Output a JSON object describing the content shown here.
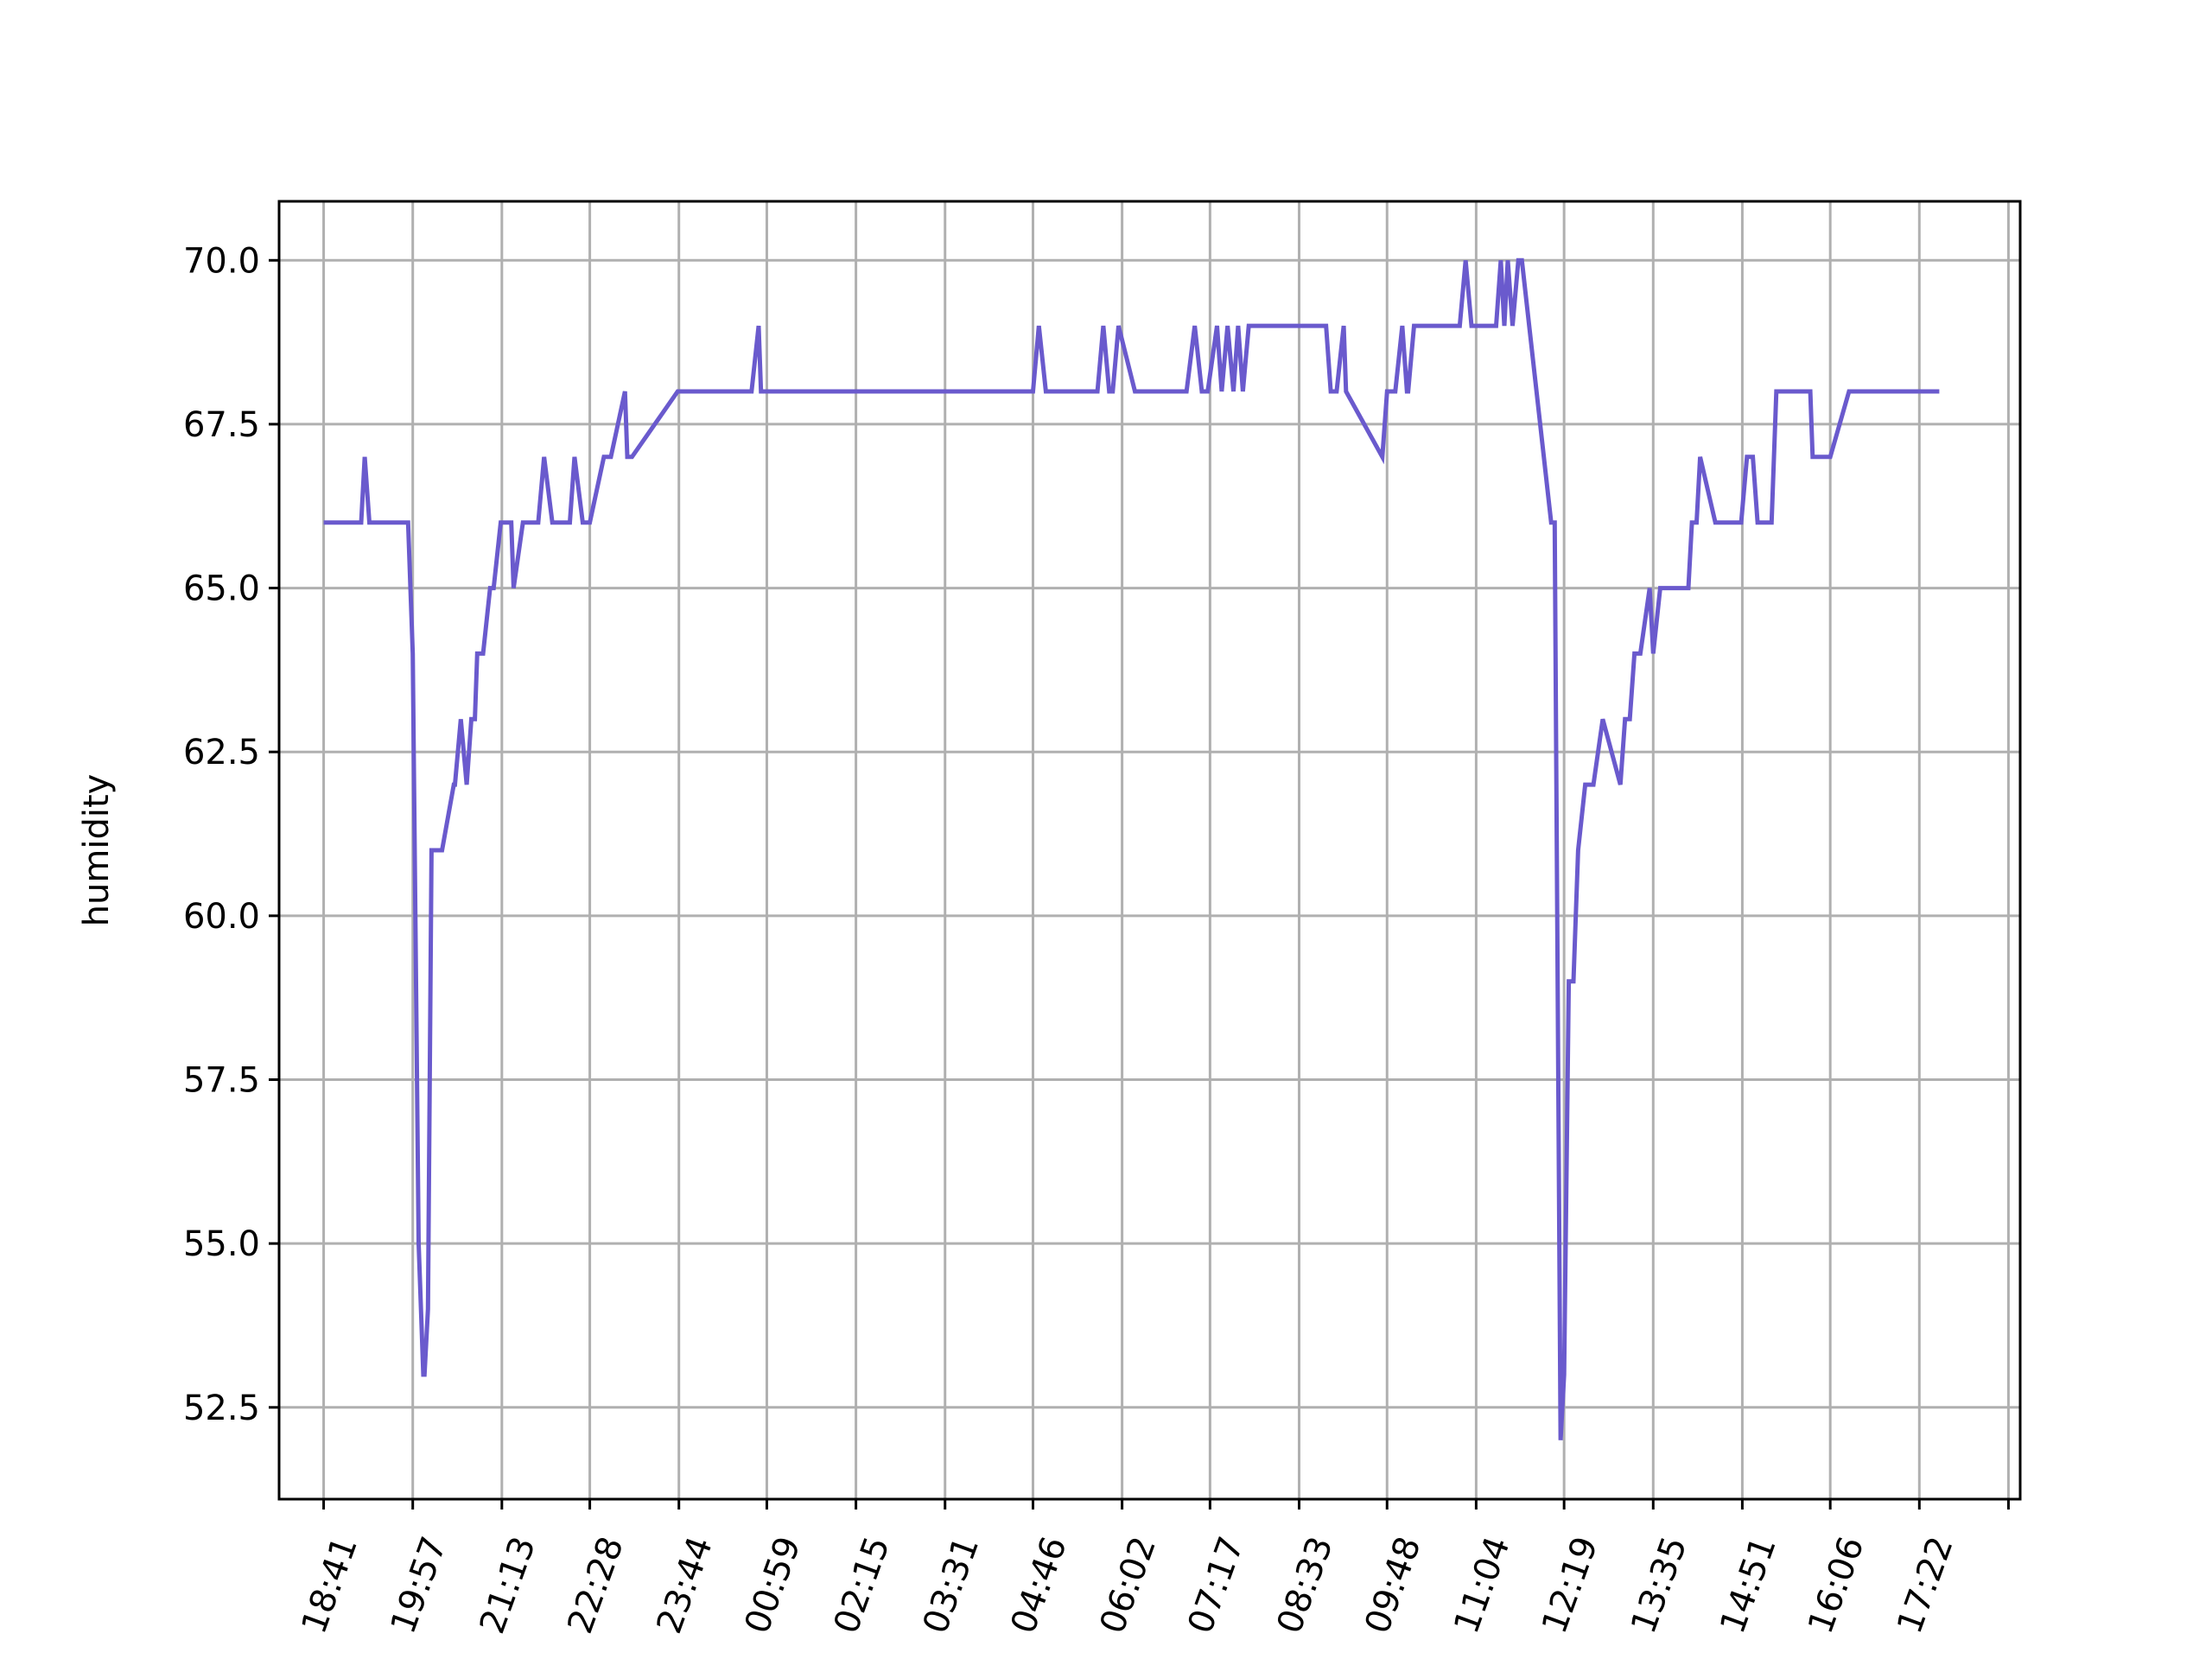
{
  "chart_data": {
    "type": "line",
    "title": "",
    "xlabel": "",
    "ylabel": "humidity",
    "grid": true,
    "ylim": [
      51.1,
      70.9
    ],
    "yticks": [
      52.5,
      55.0,
      57.5,
      60.0,
      62.5,
      65.0,
      67.5,
      70.0
    ],
    "yticks_text": [
      "52.5",
      "55.0",
      "57.5",
      "60.0",
      "62.5",
      "65.0",
      "67.5",
      "70.0"
    ],
    "xlim": [
      "18:03",
      "18:48"
    ],
    "xticks": [
      "18:41",
      "19:57",
      "21:13",
      "22:28",
      "23:44",
      "00:59",
      "02:15",
      "03:31",
      "04:46",
      "06:02",
      "07:17",
      "08:33",
      "09:48",
      "11:04",
      "12:19",
      "13:35",
      "14:51",
      "16:06",
      "17:22",
      ""
    ],
    "colors": {
      "line": "#6a5acd",
      "grid": "#b0b0b0"
    },
    "series": [
      {
        "x": [
          "18:41",
          "19:13",
          "19:16",
          "19:20",
          "19:23",
          "19:53",
          "19:57",
          "20:02",
          "20:06",
          "20:07",
          "20:10",
          "20:13",
          "20:22",
          "20:32",
          "20:33",
          "20:38",
          "20:43",
          "20:47",
          "20:50",
          "20:52",
          "20:57",
          "21:03",
          "21:06",
          "21:12",
          "21:21",
          "21:23",
          "21:31",
          "21:35",
          "21:44",
          "21:49",
          "21:56",
          "22:01",
          "22:03",
          "22:09",
          "22:11",
          "22:15",
          "22:22",
          "22:28",
          "22:40",
          "22:43",
          "22:46",
          "22:58",
          "23:00",
          "23:04",
          "23:43",
          "23:48",
          "23:51",
          "23:56",
          "23:59",
          "00:03",
          "00:31",
          "00:36",
          "00:46",
          "00:52",
          "00:54",
          "01:01",
          "04:46",
          "04:51",
          "04:57",
          "05:41",
          "05:46",
          "05:51",
          "05:54",
          "05:59",
          "06:13",
          "06:57",
          "07:04",
          "07:10",
          "07:15",
          "07:23",
          "07:27",
          "07:32",
          "07:37",
          "07:41",
          "07:45",
          "07:50",
          "08:53",
          "08:56",
          "09:00",
          "09:05",
          "09:11",
          "09:13",
          "09:44",
          "09:48",
          "09:51",
          "09:55",
          "10:01",
          "10:05",
          "10:06",
          "10:11",
          "10:50",
          "10:55",
          "11:00",
          "11:21",
          "11:25",
          "11:28",
          "11:31",
          "11:35",
          "11:40",
          "11:43",
          "12:08",
          "12:11",
          "12:16",
          "12:19",
          "12:23",
          "12:27",
          "12:31",
          "12:37",
          "12:44",
          "12:52",
          "13:07",
          "13:11",
          "13:15",
          "13:19",
          "13:24",
          "13:32",
          "13:35",
          "13:41",
          "14:05",
          "14:08",
          "14:12",
          "14:15",
          "14:28",
          "14:50",
          "14:55",
          "15:00",
          "15:04",
          "15:14",
          "15:16",
          "15:20",
          "15:49",
          "15:51",
          "16:06",
          "16:22",
          "16:39",
          "17:03",
          "17:06",
          "17:16",
          "17:18",
          "17:33",
          "17:38",
          "17:39"
        ],
        "y": [
          66,
          66,
          67,
          66,
          66,
          66,
          64,
          55,
          53,
          53,
          54,
          61,
          61,
          62,
          62,
          63,
          62,
          63,
          63,
          64,
          64,
          65,
          65,
          66,
          66,
          65,
          66,
          66,
          66,
          67,
          66,
          66,
          66,
          66,
          66,
          67,
          66,
          66,
          67,
          67,
          67,
          68,
          67,
          67,
          68,
          68,
          68,
          68,
          68,
          68,
          68,
          68,
          68,
          69,
          68,
          68,
          68,
          69,
          68,
          68,
          69,
          68,
          68,
          69,
          68,
          68,
          69,
          68,
          68,
          69,
          68,
          69,
          68,
          69,
          68,
          69,
          69,
          69,
          68,
          68,
          69,
          68,
          67,
          68,
          68,
          68,
          69,
          68,
          68,
          69,
          69,
          70,
          69,
          69,
          70,
          69,
          70,
          69,
          70,
          70,
          66,
          66,
          52,
          53,
          59,
          59,
          61,
          62,
          62,
          63,
          62,
          63,
          63,
          64,
          64,
          65,
          64,
          65,
          65,
          66,
          66,
          67,
          66,
          66,
          67,
          67,
          66,
          66,
          66,
          68,
          68,
          67,
          67,
          68,
          68,
          68,
          68,
          68,
          68,
          68,
          68,
          68
        ]
      }
    ]
  }
}
